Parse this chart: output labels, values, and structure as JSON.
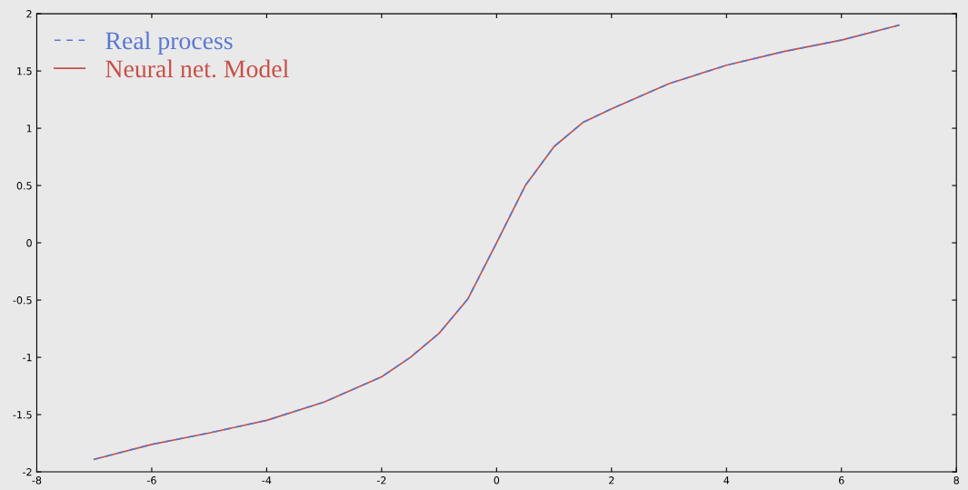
{
  "chart_data": {
    "type": "line",
    "x": [
      -7,
      -6,
      -5,
      -4,
      -3,
      -2,
      -1.5,
      -1,
      -0.5,
      0,
      0.5,
      1,
      1.5,
      2,
      3,
      4,
      5,
      6,
      7
    ],
    "series": [
      {
        "name": "Real process",
        "color": "#5a78d0",
        "line_style": "dashed",
        "values": [
          -1.89,
          -1.76,
          -1.66,
          -1.55,
          -1.39,
          -1.17,
          -1.0,
          -0.79,
          -0.49,
          0.0,
          0.5,
          0.84,
          1.05,
          1.17,
          1.39,
          1.55,
          1.67,
          1.77,
          1.9
        ]
      },
      {
        "name": "Neural net. Model",
        "color": "#c8504a",
        "values": [
          -1.89,
          -1.76,
          -1.66,
          -1.55,
          -1.39,
          -1.17,
          -1.0,
          -0.79,
          -0.49,
          0.0,
          0.5,
          0.84,
          1.05,
          1.17,
          1.39,
          1.55,
          1.67,
          1.77,
          1.9
        ]
      }
    ],
    "xlim": [
      -8,
      8
    ],
    "xticks": [
      -8,
      -6,
      -4,
      -2,
      0,
      2,
      4,
      6,
      8
    ],
    "ylim": [
      -2,
      2
    ],
    "yticks": [
      -2,
      -1.5,
      -1,
      -0.5,
      0,
      0.5,
      1,
      1.5,
      2
    ],
    "legend": "top left",
    "grid": false,
    "marker": "none",
    "line_style": "solid"
  }
}
